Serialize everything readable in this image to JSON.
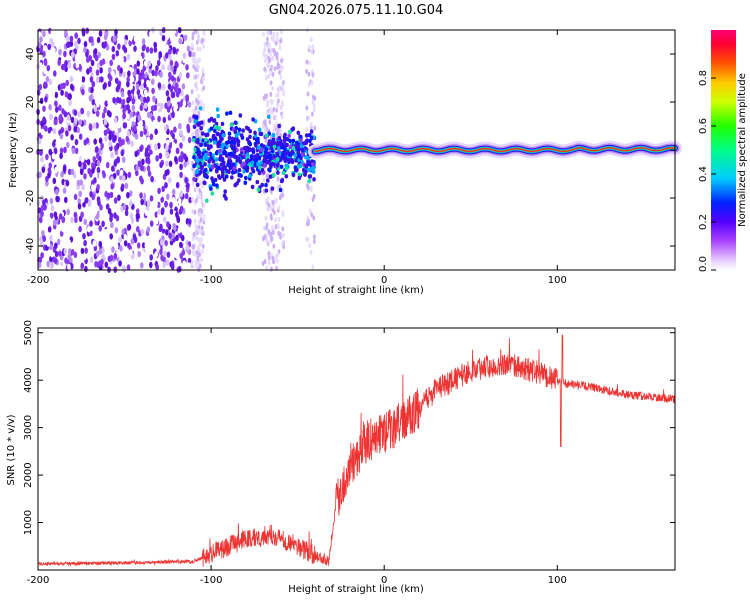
{
  "title": "GN04.2026.075.11.10.G04",
  "colors": {
    "snr_line": "#ee3333",
    "band": "#00c0e0",
    "frame": "#000000"
  },
  "chart_data": [
    {
      "type": "heatmap",
      "name": "spectrogram",
      "xlabel": "Height of straight line (km)",
      "ylabel": "Frequency (Hz)",
      "xlim": [
        -200,
        168
      ],
      "ylim": [
        -50,
        50
      ],
      "xticks": [
        -200,
        -100,
        0,
        100
      ],
      "yticks": [
        -40,
        -20,
        0,
        20,
        40
      ],
      "colorbar": {
        "label": "Normalized spectral amplitude",
        "range": [
          0,
          1
        ],
        "ticks": [
          0.0,
          0.2,
          0.4,
          0.6,
          0.8
        ],
        "tick_labels": [
          "0.0",
          "0.2",
          "0.4",
          "0.6",
          "0.8"
        ]
      },
      "regions": [
        {
          "x_range": [
            -200,
            -112
          ],
          "description": "broadband noise",
          "amplitude": 0.25
        },
        {
          "x_range": [
            -110,
            -40
          ],
          "center_freq": -2,
          "spread": 8,
          "amplitude": 0.4
        },
        {
          "x_range": [
            -40,
            168
          ],
          "center_freq": 0,
          "spread": 1,
          "amplitude": 0.95
        }
      ]
    },
    {
      "type": "line",
      "name": "snr",
      "xlabel": "Height of straight line (km)",
      "ylabel": "SNR (10 * v/v)",
      "xlim": [
        -200,
        168
      ],
      "ylim": [
        0,
        5100
      ],
      "xticks": [
        -200,
        -100,
        0,
        100
      ],
      "yticks": [
        1000,
        2000,
        3000,
        4000,
        5000
      ],
      "series": [
        {
          "name": "SNR",
          "x": [
            -200,
            -150,
            -110,
            -100,
            -80,
            -65,
            -50,
            -40,
            -32,
            -28,
            -20,
            -10,
            0,
            10,
            20,
            30,
            40,
            50,
            60,
            70,
            80,
            90,
            100,
            102,
            110,
            120,
            140,
            168
          ],
          "y": [
            130,
            150,
            180,
            350,
            650,
            750,
            500,
            300,
            200,
            1400,
            2200,
            2700,
            2900,
            3100,
            3400,
            3800,
            4000,
            4200,
            4300,
            4350,
            4250,
            4150,
            4000,
            3950,
            3900,
            3850,
            3700,
            3600
          ]
        }
      ]
    }
  ]
}
